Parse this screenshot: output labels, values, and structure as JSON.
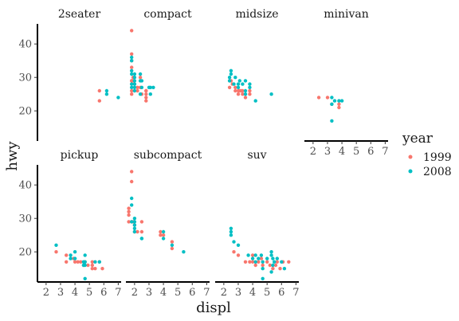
{
  "chart_data": {
    "type": "scatter",
    "title": "",
    "xlabel": "displ",
    "ylabel": "hwy",
    "xlim": [
      1.4,
      7.2
    ],
    "ylim": [
      11,
      46
    ],
    "x_ticks": [
      2,
      3,
      4,
      5,
      6,
      7
    ],
    "y_ticks": [
      20,
      30,
      40
    ],
    "grid": false,
    "legend": {
      "title": "year",
      "placement": "right",
      "entries": [
        {
          "label": "1999",
          "color": "#F8766D"
        },
        {
          "label": "2008",
          "color": "#00BFC4"
        }
      ]
    },
    "facets": [
      {
        "name": "2seater",
        "points": [
          {
            "x": 5.7,
            "y": 26,
            "year": "1999"
          },
          {
            "x": 5.7,
            "y": 23,
            "year": "1999"
          },
          {
            "x": 6.2,
            "y": 26,
            "year": "2008"
          },
          {
            "x": 6.2,
            "y": 25,
            "year": "2008"
          },
          {
            "x": 7.0,
            "y": 24,
            "year": "2008"
          }
        ]
      },
      {
        "name": "compact",
        "points": [
          {
            "x": 1.8,
            "y": 29,
            "year": "1999"
          },
          {
            "x": 1.8,
            "y": 29,
            "year": "1999"
          },
          {
            "x": 1.8,
            "y": 26,
            "year": "1999"
          },
          {
            "x": 1.8,
            "y": 25,
            "year": "1999"
          },
          {
            "x": 1.8,
            "y": 33,
            "year": "1999"
          },
          {
            "x": 1.8,
            "y": 35,
            "year": "1999"
          },
          {
            "x": 1.8,
            "y": 37,
            "year": "1999"
          },
          {
            "x": 1.8,
            "y": 44,
            "year": "1999"
          },
          {
            "x": 1.9,
            "y": 29,
            "year": "1999"
          },
          {
            "x": 1.9,
            "y": 30,
            "year": "1999"
          },
          {
            "x": 2.0,
            "y": 28,
            "year": "1999"
          },
          {
            "x": 2.0,
            "y": 26,
            "year": "1999"
          },
          {
            "x": 2.2,
            "y": 26,
            "year": "1999"
          },
          {
            "x": 2.2,
            "y": 27,
            "year": "1999"
          },
          {
            "x": 2.4,
            "y": 30,
            "year": "1999"
          },
          {
            "x": 2.4,
            "y": 27,
            "year": "1999"
          },
          {
            "x": 2.5,
            "y": 25,
            "year": "1999"
          },
          {
            "x": 2.8,
            "y": 26,
            "year": "1999"
          },
          {
            "x": 2.8,
            "y": 24,
            "year": "1999"
          },
          {
            "x": 2.8,
            "y": 23,
            "year": "1999"
          },
          {
            "x": 2.8,
            "y": 26,
            "year": "1999"
          },
          {
            "x": 2.8,
            "y": 25,
            "year": "1999"
          },
          {
            "x": 2.0,
            "y": 31,
            "year": "2008"
          },
          {
            "x": 2.0,
            "y": 30,
            "year": "2008"
          },
          {
            "x": 2.0,
            "y": 28,
            "year": "2008"
          },
          {
            "x": 2.0,
            "y": 27,
            "year": "2008"
          },
          {
            "x": 1.8,
            "y": 36,
            "year": "2008"
          },
          {
            "x": 1.8,
            "y": 35,
            "year": "2008"
          },
          {
            "x": 1.8,
            "y": 32,
            "year": "2008"
          },
          {
            "x": 1.8,
            "y": 31,
            "year": "2008"
          },
          {
            "x": 1.8,
            "y": 28,
            "year": "2008"
          },
          {
            "x": 1.8,
            "y": 27,
            "year": "2008"
          },
          {
            "x": 2.0,
            "y": 29,
            "year": "2008"
          },
          {
            "x": 2.0,
            "y": 26,
            "year": "2008"
          },
          {
            "x": 2.4,
            "y": 31,
            "year": "2008"
          },
          {
            "x": 2.4,
            "y": 29,
            "year": "2008"
          },
          {
            "x": 2.5,
            "y": 29,
            "year": "2008"
          },
          {
            "x": 2.5,
            "y": 27,
            "year": "2008"
          },
          {
            "x": 3.0,
            "y": 27,
            "year": "2008"
          },
          {
            "x": 3.1,
            "y": 25,
            "year": "2008"
          },
          {
            "x": 3.3,
            "y": 27,
            "year": "2008"
          },
          {
            "x": 2.4,
            "y": 25,
            "year": "2008"
          },
          {
            "x": 3.1,
            "y": 27,
            "year": "2008"
          }
        ]
      },
      {
        "name": "midsize",
        "points": [
          {
            "x": 2.4,
            "y": 29,
            "year": "1999"
          },
          {
            "x": 2.4,
            "y": 27,
            "year": "1999"
          },
          {
            "x": 2.5,
            "y": 29,
            "year": "1999"
          },
          {
            "x": 2.8,
            "y": 26,
            "year": "1999"
          },
          {
            "x": 2.8,
            "y": 27,
            "year": "1999"
          },
          {
            "x": 3.0,
            "y": 26,
            "year": "1999"
          },
          {
            "x": 3.1,
            "y": 26,
            "year": "1999"
          },
          {
            "x": 3.3,
            "y": 26,
            "year": "1999"
          },
          {
            "x": 3.0,
            "y": 25,
            "year": "1999"
          },
          {
            "x": 3.5,
            "y": 24,
            "year": "1999"
          },
          {
            "x": 3.8,
            "y": 26,
            "year": "1999"
          },
          {
            "x": 3.8,
            "y": 25,
            "year": "1999"
          },
          {
            "x": 3.3,
            "y": 25,
            "year": "1999"
          },
          {
            "x": 2.6,
            "y": 28,
            "year": "1999"
          },
          {
            "x": 3.2,
            "y": 26,
            "year": "1999"
          },
          {
            "x": 2.4,
            "y": 30,
            "year": "2008"
          },
          {
            "x": 2.5,
            "y": 31,
            "year": "2008"
          },
          {
            "x": 2.5,
            "y": 32,
            "year": "2008"
          },
          {
            "x": 2.4,
            "y": 29,
            "year": "2008"
          },
          {
            "x": 2.8,
            "y": 30,
            "year": "2008"
          },
          {
            "x": 2.7,
            "y": 28,
            "year": "2008"
          },
          {
            "x": 3.0,
            "y": 28,
            "year": "2008"
          },
          {
            "x": 3.0,
            "y": 27,
            "year": "2008"
          },
          {
            "x": 3.5,
            "y": 29,
            "year": "2008"
          },
          {
            "x": 3.5,
            "y": 26,
            "year": "2008"
          },
          {
            "x": 3.3,
            "y": 28,
            "year": "2008"
          },
          {
            "x": 3.8,
            "y": 28,
            "year": "2008"
          },
          {
            "x": 3.8,
            "y": 27,
            "year": "2008"
          },
          {
            "x": 3.5,
            "y": 25,
            "year": "2008"
          },
          {
            "x": 4.2,
            "y": 23,
            "year": "2008"
          },
          {
            "x": 5.3,
            "y": 25,
            "year": "2008"
          },
          {
            "x": 3.1,
            "y": 29,
            "year": "2008"
          }
        ]
      },
      {
        "name": "minivan",
        "points": [
          {
            "x": 2.4,
            "y": 24,
            "year": "1999"
          },
          {
            "x": 3.0,
            "y": 24,
            "year": "1999"
          },
          {
            "x": 3.3,
            "y": 22,
            "year": "1999"
          },
          {
            "x": 3.8,
            "y": 22,
            "year": "1999"
          },
          {
            "x": 3.8,
            "y": 21,
            "year": "1999"
          },
          {
            "x": 3.3,
            "y": 24,
            "year": "2008"
          },
          {
            "x": 3.3,
            "y": 17,
            "year": "2008"
          },
          {
            "x": 3.8,
            "y": 23,
            "year": "2008"
          },
          {
            "x": 4.0,
            "y": 23,
            "year": "2008"
          },
          {
            "x": 3.5,
            "y": 23,
            "year": "2008"
          },
          {
            "x": 3.3,
            "y": 22,
            "year": "2008"
          }
        ]
      },
      {
        "name": "pickup",
        "points": [
          {
            "x": 2.7,
            "y": 20,
            "year": "1999"
          },
          {
            "x": 3.4,
            "y": 17,
            "year": "1999"
          },
          {
            "x": 3.4,
            "y": 19,
            "year": "1999"
          },
          {
            "x": 3.9,
            "y": 18,
            "year": "1999"
          },
          {
            "x": 4.0,
            "y": 17,
            "year": "1999"
          },
          {
            "x": 4.2,
            "y": 17,
            "year": "1999"
          },
          {
            "x": 4.4,
            "y": 17,
            "year": "1999"
          },
          {
            "x": 4.6,
            "y": 16,
            "year": "1999"
          },
          {
            "x": 4.7,
            "y": 17,
            "year": "1999"
          },
          {
            "x": 4.9,
            "y": 16,
            "year": "1999"
          },
          {
            "x": 5.2,
            "y": 15,
            "year": "1999"
          },
          {
            "x": 5.2,
            "y": 16,
            "year": "1999"
          },
          {
            "x": 5.4,
            "y": 15,
            "year": "1999"
          },
          {
            "x": 5.7,
            "y": 17,
            "year": "1999"
          },
          {
            "x": 5.9,
            "y": 15,
            "year": "1999"
          },
          {
            "x": 5.2,
            "y": 17,
            "year": "1999"
          },
          {
            "x": 2.7,
            "y": 22,
            "year": "2008"
          },
          {
            "x": 3.7,
            "y": 18,
            "year": "2008"
          },
          {
            "x": 3.7,
            "y": 19,
            "year": "2008"
          },
          {
            "x": 4.0,
            "y": 20,
            "year": "2008"
          },
          {
            "x": 4.0,
            "y": 18,
            "year": "2008"
          },
          {
            "x": 4.6,
            "y": 17,
            "year": "2008"
          },
          {
            "x": 4.7,
            "y": 19,
            "year": "2008"
          },
          {
            "x": 4.7,
            "y": 16,
            "year": "2008"
          },
          {
            "x": 4.7,
            "y": 12,
            "year": "2008"
          },
          {
            "x": 5.7,
            "y": 17,
            "year": "2008"
          },
          {
            "x": 5.4,
            "y": 17,
            "year": "2008"
          },
          {
            "x": 4.7,
            "y": 17,
            "year": "2008"
          },
          {
            "x": 4.6,
            "y": 16,
            "year": "2008"
          }
        ]
      },
      {
        "name": "subcompact",
        "points": [
          {
            "x": 1.6,
            "y": 33,
            "year": "1999"
          },
          {
            "x": 1.6,
            "y": 32,
            "year": "1999"
          },
          {
            "x": 1.6,
            "y": 29,
            "year": "1999"
          },
          {
            "x": 1.8,
            "y": 29,
            "year": "1999"
          },
          {
            "x": 1.8,
            "y": 41,
            "year": "1999"
          },
          {
            "x": 1.8,
            "y": 44,
            "year": "1999"
          },
          {
            "x": 1.9,
            "y": 29,
            "year": "1999"
          },
          {
            "x": 2.0,
            "y": 26,
            "year": "1999"
          },
          {
            "x": 2.0,
            "y": 28,
            "year": "1999"
          },
          {
            "x": 2.2,
            "y": 26,
            "year": "1999"
          },
          {
            "x": 2.5,
            "y": 26,
            "year": "1999"
          },
          {
            "x": 2.5,
            "y": 29,
            "year": "1999"
          },
          {
            "x": 3.8,
            "y": 26,
            "year": "1999"
          },
          {
            "x": 3.8,
            "y": 25,
            "year": "1999"
          },
          {
            "x": 4.0,
            "y": 25,
            "year": "1999"
          },
          {
            "x": 4.6,
            "y": 23,
            "year": "1999"
          },
          {
            "x": 4.6,
            "y": 21,
            "year": "1999"
          },
          {
            "x": 1.6,
            "y": 31,
            "year": "1999"
          },
          {
            "x": 1.8,
            "y": 36,
            "year": "2008"
          },
          {
            "x": 1.8,
            "y": 34,
            "year": "2008"
          },
          {
            "x": 1.8,
            "y": 29,
            "year": "2008"
          },
          {
            "x": 2.0,
            "y": 29,
            "year": "2008"
          },
          {
            "x": 2.0,
            "y": 28,
            "year": "2008"
          },
          {
            "x": 2.0,
            "y": 27,
            "year": "2008"
          },
          {
            "x": 2.0,
            "y": 26,
            "year": "2008"
          },
          {
            "x": 2.5,
            "y": 24,
            "year": "2008"
          },
          {
            "x": 4.0,
            "y": 26,
            "year": "2008"
          },
          {
            "x": 4.0,
            "y": 24,
            "year": "2008"
          },
          {
            "x": 4.6,
            "y": 22,
            "year": "2008"
          },
          {
            "x": 5.4,
            "y": 20,
            "year": "2008"
          },
          {
            "x": 2.0,
            "y": 30,
            "year": "2008"
          },
          {
            "x": 2.5,
            "y": 24,
            "year": "2008"
          }
        ]
      },
      {
        "name": "suv",
        "points": [
          {
            "x": 2.7,
            "y": 20,
            "year": "1999"
          },
          {
            "x": 3.0,
            "y": 19,
            "year": "1999"
          },
          {
            "x": 3.5,
            "y": 17,
            "year": "1999"
          },
          {
            "x": 3.8,
            "y": 17,
            "year": "1999"
          },
          {
            "x": 4.0,
            "y": 17,
            "year": "1999"
          },
          {
            "x": 4.2,
            "y": 16,
            "year": "1999"
          },
          {
            "x": 4.4,
            "y": 17,
            "year": "1999"
          },
          {
            "x": 4.6,
            "y": 18,
            "year": "1999"
          },
          {
            "x": 4.7,
            "y": 16,
            "year": "1999"
          },
          {
            "x": 5.0,
            "y": 17,
            "year": "1999"
          },
          {
            "x": 5.2,
            "y": 16,
            "year": "1999"
          },
          {
            "x": 5.4,
            "y": 15,
            "year": "1999"
          },
          {
            "x": 5.6,
            "y": 16,
            "year": "1999"
          },
          {
            "x": 5.7,
            "y": 17,
            "year": "1999"
          },
          {
            "x": 5.9,
            "y": 15,
            "year": "1999"
          },
          {
            "x": 6.1,
            "y": 17,
            "year": "1999"
          },
          {
            "x": 6.5,
            "y": 17,
            "year": "1999"
          },
          {
            "x": 4.0,
            "y": 19,
            "year": "1999"
          },
          {
            "x": 2.5,
            "y": 26,
            "year": "2008"
          },
          {
            "x": 2.5,
            "y": 27,
            "year": "2008"
          },
          {
            "x": 2.5,
            "y": 25,
            "year": "2008"
          },
          {
            "x": 2.7,
            "y": 23,
            "year": "2008"
          },
          {
            "x": 3.0,
            "y": 22,
            "year": "2008"
          },
          {
            "x": 3.7,
            "y": 19,
            "year": "2008"
          },
          {
            "x": 4.0,
            "y": 18,
            "year": "2008"
          },
          {
            "x": 4.2,
            "y": 19,
            "year": "2008"
          },
          {
            "x": 4.4,
            "y": 18,
            "year": "2008"
          },
          {
            "x": 4.6,
            "y": 19,
            "year": "2008"
          },
          {
            "x": 4.7,
            "y": 17,
            "year": "2008"
          },
          {
            "x": 4.7,
            "y": 12,
            "year": "2008"
          },
          {
            "x": 5.0,
            "y": 18,
            "year": "2008"
          },
          {
            "x": 5.3,
            "y": 20,
            "year": "2008"
          },
          {
            "x": 5.3,
            "y": 19,
            "year": "2008"
          },
          {
            "x": 5.4,
            "y": 18,
            "year": "2008"
          },
          {
            "x": 5.4,
            "y": 16,
            "year": "2008"
          },
          {
            "x": 5.5,
            "y": 17,
            "year": "2008"
          },
          {
            "x": 5.7,
            "y": 18,
            "year": "2008"
          },
          {
            "x": 6.0,
            "y": 17,
            "year": "2008"
          },
          {
            "x": 6.2,
            "y": 15,
            "year": "2008"
          },
          {
            "x": 5.3,
            "y": 14,
            "year": "2008"
          },
          {
            "x": 4.7,
            "y": 15,
            "year": "2008"
          },
          {
            "x": 4.2,
            "y": 17,
            "year": "2008"
          }
        ]
      }
    ]
  }
}
